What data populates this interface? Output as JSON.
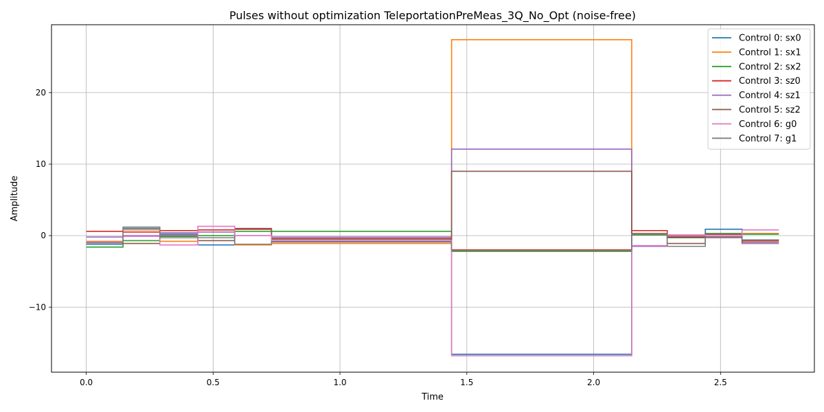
{
  "chart_data": {
    "type": "line",
    "title": "Pulses without optimization TeleportationPreMeas_3Q_No_Opt (noise-free)",
    "xlabel": "Time",
    "ylabel": "Amplitude",
    "xlim": [
      -0.137,
      2.87
    ],
    "ylim": [
      -19.1,
      29.5
    ],
    "xticks": [
      0.0,
      0.5,
      1.0,
      1.5,
      2.0,
      2.5
    ],
    "xtick_labels": [
      "0.0",
      "0.5",
      "1.0",
      "1.5",
      "2.0",
      "2.5"
    ],
    "yticks": [
      -10,
      0,
      10,
      20
    ],
    "ytick_labels": [
      "−10",
      "0",
      "10",
      "20"
    ],
    "grid": true,
    "legend_position": "top-right",
    "step_edges": [
      0.0,
      0.145,
      0.29,
      0.44,
      0.585,
      0.73,
      1.44,
      2.15,
      2.29,
      2.44,
      2.585,
      2.73
    ],
    "series": [
      {
        "name": "Control 0: sx0",
        "color": "#1f77b4",
        "values": [
          -1.2,
          1.0,
          0.2,
          -1.3,
          0.9,
          -0.8,
          -16.6,
          0.2,
          -0.3,
          0.9,
          -0.6
        ]
      },
      {
        "name": "Control 1: sx1",
        "color": "#ff7f0e",
        "values": [
          -0.8,
          0.8,
          -0.8,
          0.8,
          -1.3,
          -1.1,
          27.4,
          0.1,
          0.0,
          -0.1,
          0.3
        ]
      },
      {
        "name": "Control 2: sx2",
        "color": "#2ca02c",
        "values": [
          -1.6,
          -0.7,
          -0.1,
          0.0,
          0.6,
          0.6,
          -2.2,
          0.1,
          -0.3,
          0.3,
          0.2
        ]
      },
      {
        "name": "Control 3: sz0",
        "color": "#d62728",
        "values": [
          0.6,
          0.5,
          0.7,
          0.8,
          0.9,
          -0.4,
          -2.0,
          0.7,
          -0.2,
          0.2,
          -0.7
        ]
      },
      {
        "name": "Control 4: sz1",
        "color": "#9467bd",
        "values": [
          -0.2,
          0.0,
          0.4,
          0.5,
          0.0,
          -0.2,
          12.1,
          -1.5,
          -0.1,
          -0.2,
          -1.1
        ]
      },
      {
        "name": "Control 5: sz2",
        "color": "#8c564b",
        "values": [
          -1.0,
          -1.1,
          0.0,
          -0.7,
          1.0,
          -0.5,
          9.0,
          0.3,
          -1.1,
          0.2,
          -0.9
        ]
      },
      {
        "name": "Control 6: g0",
        "color": "#e377c2",
        "values": [
          -0.9,
          -0.1,
          -1.3,
          1.3,
          0.0,
          -0.7,
          -16.8,
          -1.4,
          0.1,
          0.0,
          0.8
        ]
      },
      {
        "name": "Control 7: g1",
        "color": "#7f7f7f",
        "values": [
          -1.0,
          1.2,
          -0.3,
          -0.3,
          -1.2,
          -0.9,
          -2.1,
          0.2,
          -1.5,
          -0.3,
          -0.6
        ]
      }
    ]
  }
}
